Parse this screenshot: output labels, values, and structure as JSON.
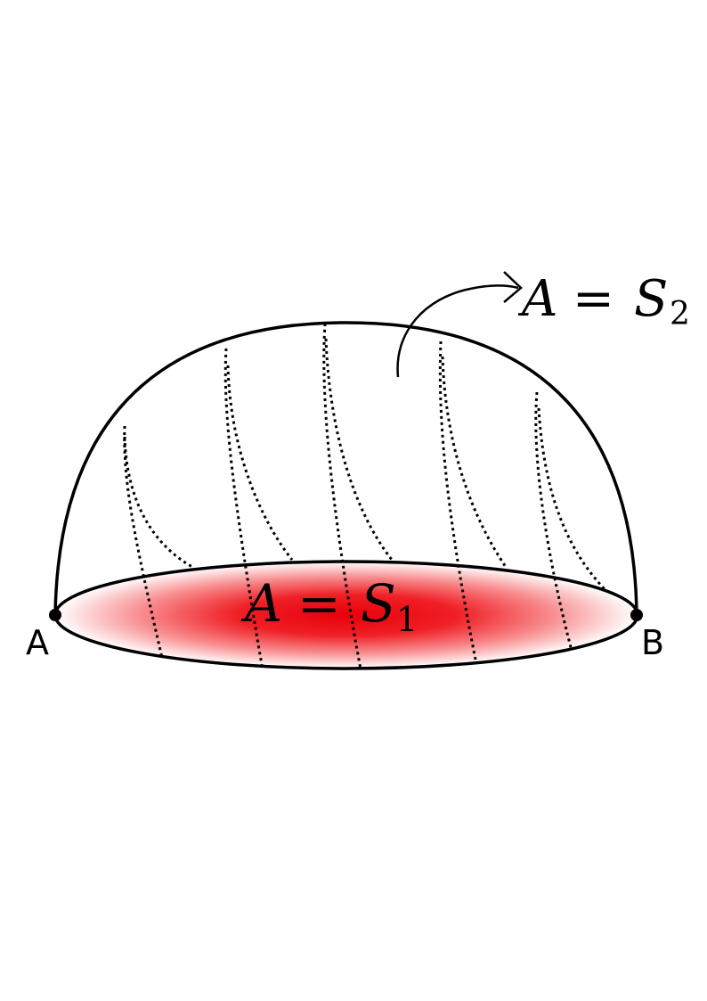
{
  "diagram": {
    "labels": {
      "point_a": "A",
      "point_b": "B",
      "surface_s1": {
        "variable": "A",
        "equals": "=",
        "letter": "S",
        "subscript": "1"
      },
      "surface_s2": {
        "variable": "A",
        "equals": "=",
        "letter": "S",
        "subscript": "2"
      }
    },
    "colors": {
      "outline": "#000000",
      "disk_center": "#e8000a",
      "disk_edge": "#ffffff"
    }
  }
}
